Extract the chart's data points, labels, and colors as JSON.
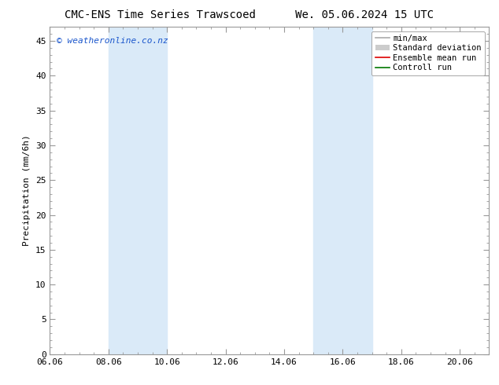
{
  "title": "CMC-ENS Time Series Trawscoed",
  "title_date": "We. 05.06.2024 15 UTC",
  "ylabel": "Precipitation (mm/6h)",
  "ylim": [
    0,
    47
  ],
  "yticks": [
    0,
    5,
    10,
    15,
    20,
    25,
    30,
    35,
    40,
    45
  ],
  "xlim": [
    0,
    15
  ],
  "xtick_labels": [
    "06.06",
    "08.06",
    "10.06",
    "12.06",
    "14.06",
    "16.06",
    "18.06",
    "20.06"
  ],
  "xtick_positions": [
    0,
    2,
    4,
    6,
    8,
    10,
    12,
    14
  ],
  "shade_bands": [
    {
      "x_start": 2,
      "x_end": 4,
      "color": "#daeaf8"
    },
    {
      "x_start": 9,
      "x_end": 11,
      "color": "#daeaf8"
    }
  ],
  "watermark": "© weatheronline.co.nz",
  "watermark_color": "#1a56cc",
  "background_color": "#ffffff",
  "plot_bg_color": "#ffffff",
  "border_color": "#999999",
  "legend_items": [
    {
      "label": "min/max",
      "color": "#aaaaaa",
      "type": "line"
    },
    {
      "label": "Standard deviation",
      "color": "#cccccc",
      "type": "fill"
    },
    {
      "label": "Ensemble mean run",
      "color": "#dd0000",
      "type": "line"
    },
    {
      "label": "Controll run",
      "color": "#007700",
      "type": "line"
    }
  ],
  "font_size_title": 10,
  "font_size_axis": 8,
  "font_size_legend": 7.5,
  "font_size_watermark": 8
}
